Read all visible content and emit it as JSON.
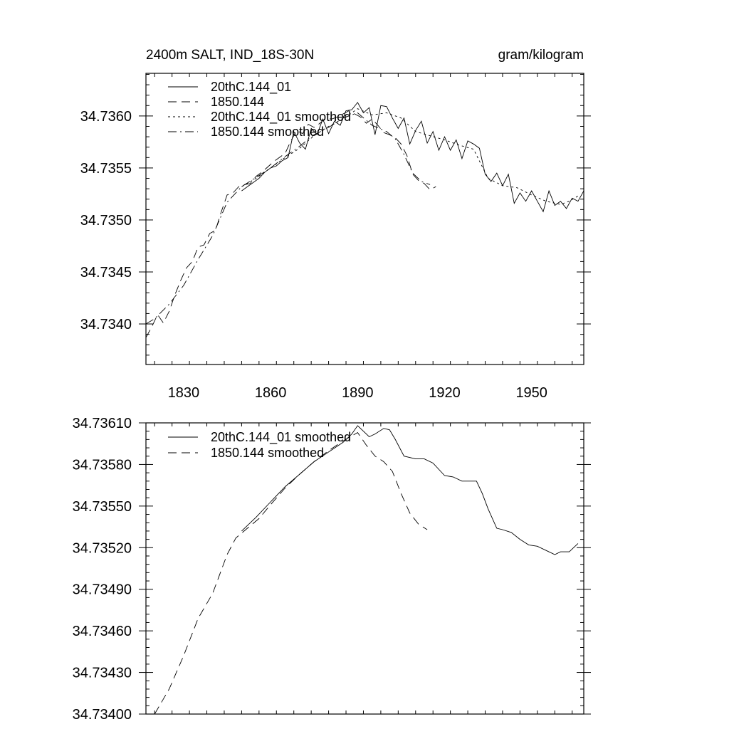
{
  "chart_data": [
    {
      "type": "line",
      "title_left": "2400m SALT, IND_18S-30N",
      "title_right": "gram/kilogram",
      "xlabel": "",
      "ylabel": "",
      "xlim": [
        1817,
        1968
      ],
      "ylim": [
        34.73361,
        34.73641
      ],
      "x_ticks": [
        1830,
        1860,
        1890,
        1920,
        1950
      ],
      "x_tick_labels": [
        "1830",
        "1860",
        "1890",
        "1920",
        "1950"
      ],
      "y_ticks": [
        34.734,
        34.7345,
        34.735,
        34.7355,
        34.736
      ],
      "y_tick_labels": [
        "34.7340",
        "34.7345",
        "34.7350",
        "34.7355",
        "34.7360"
      ],
      "legend_position": "top-left",
      "series": [
        {
          "name": "20thC.144_01",
          "dash": "solid",
          "x": [
            1850,
            1852,
            1854,
            1856,
            1858,
            1860,
            1862,
            1864,
            1866,
            1868,
            1870,
            1872,
            1874,
            1876,
            1878,
            1880,
            1882,
            1884,
            1886,
            1888,
            1890,
            1892,
            1894,
            1896,
            1898,
            1900,
            1902,
            1904,
            1906,
            1908,
            1910,
            1912,
            1914,
            1916,
            1918,
            1920,
            1922,
            1924,
            1926,
            1928,
            1930,
            1932,
            1934,
            1936,
            1938,
            1940,
            1942,
            1944,
            1946,
            1948,
            1950,
            1952,
            1954,
            1956,
            1958,
            1960,
            1962,
            1964,
            1966,
            1968
          ],
          "y": [
            34.73528,
            34.73532,
            34.73536,
            34.7354,
            34.73546,
            34.7355,
            34.73552,
            34.73557,
            34.7356,
            34.73585,
            34.73574,
            34.73568,
            34.73588,
            34.73582,
            34.73597,
            34.73583,
            34.73595,
            34.73591,
            34.73605,
            34.73606,
            34.73613,
            34.73603,
            34.73608,
            34.73582,
            34.7361,
            34.73609,
            34.73598,
            34.73588,
            34.73598,
            34.73573,
            34.73586,
            34.73595,
            34.73574,
            34.73585,
            34.73567,
            34.7358,
            34.73567,
            34.73577,
            34.73559,
            34.73576,
            34.73573,
            34.73569,
            34.73544,
            34.73537,
            34.73545,
            34.73533,
            34.73544,
            34.73516,
            34.73526,
            34.73518,
            34.73528,
            34.73518,
            34.73508,
            34.73528,
            34.73514,
            34.73518,
            34.73511,
            34.73521,
            34.73518,
            34.73528
          ]
        },
        {
          "name": "1850.144",
          "dash": "long-dash",
          "x": [
            1817,
            1819,
            1821,
            1823,
            1825,
            1827,
            1829,
            1831,
            1833,
            1835,
            1837,
            1839,
            1841,
            1843,
            1845,
            1847,
            1849,
            1851,
            1853,
            1855,
            1857,
            1859,
            1861,
            1863,
            1865,
            1867,
            1869,
            1871,
            1873,
            1875,
            1877,
            1879,
            1881,
            1883,
            1885,
            1887,
            1889,
            1891,
            1893,
            1895,
            1897,
            1899,
            1901,
            1903,
            1905,
            1907,
            1909,
            1911,
            1913,
            1915,
            1917
          ],
          "y": [
            34.73387,
            34.73397,
            34.73409,
            34.73401,
            34.73412,
            34.73428,
            34.73442,
            34.73454,
            34.7346,
            34.73474,
            34.73476,
            34.73487,
            34.7349,
            34.73508,
            34.73524,
            34.73526,
            34.73532,
            34.73534,
            34.73535,
            34.73542,
            34.73546,
            34.73551,
            34.73556,
            34.7356,
            34.73564,
            34.73576,
            34.73586,
            34.73583,
            34.73592,
            34.73589,
            34.73593,
            34.73598,
            34.73597,
            34.73599,
            34.73602,
            34.73605,
            34.73602,
            34.73599,
            34.73593,
            34.73597,
            34.73591,
            34.73584,
            34.73582,
            34.73579,
            34.73573,
            34.73562,
            34.73544,
            34.73538,
            34.73535,
            34.73529,
            34.73532
          ]
        },
        {
          "name": "20thC.144_01 smoothed",
          "dash": "dotted",
          "x": [
            1850,
            1855,
            1860,
            1865,
            1870,
            1875,
            1880,
            1885,
            1890,
            1895,
            1900,
            1905,
            1910,
            1915,
            1920,
            1925,
            1930,
            1935,
            1940,
            1945,
            1950,
            1955,
            1960,
            1963,
            1966
          ],
          "y": [
            34.73532,
            34.7354,
            34.7355,
            34.7356,
            34.73569,
            34.73581,
            34.7359,
            34.73597,
            34.73607,
            34.73601,
            34.73603,
            34.73598,
            34.73585,
            34.73581,
            34.73577,
            34.73572,
            34.73568,
            34.7354,
            34.73533,
            34.73531,
            34.73524,
            34.73518,
            34.73515,
            34.73518,
            34.73523
          ]
        },
        {
          "name": "1850.144 smoothed",
          "dash": "dash-dot",
          "x": [
            1817,
            1820,
            1825,
            1830,
            1835,
            1840,
            1845,
            1850,
            1855,
            1860,
            1865,
            1870,
            1875,
            1880,
            1885,
            1890,
            1895,
            1900,
            1903,
            1906,
            1909,
            1912,
            1915
          ],
          "y": [
            34.734,
            34.73405,
            34.73419,
            34.73437,
            34.73462,
            34.73485,
            34.73517,
            34.73532,
            34.73541,
            34.7355,
            34.73561,
            34.73571,
            34.73582,
            34.73589,
            34.73598,
            34.73603,
            34.73591,
            34.73585,
            34.73578,
            34.73563,
            34.73545,
            34.73537,
            34.73534
          ]
        }
      ]
    },
    {
      "type": "line",
      "xlim": [
        1817,
        1968
      ],
      "ylim": [
        34.734,
        34.7361
      ],
      "x_ticks": [
        1830,
        1860,
        1890,
        1920,
        1950
      ],
      "y_ticks": [
        34.734,
        34.7343,
        34.7346,
        34.7349,
        34.7352,
        34.7355,
        34.7358,
        34.7361
      ],
      "y_tick_labels": [
        "34.73400",
        "34.73430",
        "34.73460",
        "34.73490",
        "34.73520",
        "34.73550",
        "34.73580",
        "34.73610"
      ],
      "legend_position": "top-left",
      "series": [
        {
          "name": "20thC.144_01 smoothed",
          "dash": "solid",
          "x": [
            1850,
            1855,
            1860,
            1865,
            1870,
            1875,
            1880,
            1885,
            1888,
            1890,
            1892,
            1894,
            1896,
            1899,
            1901,
            1903,
            1906,
            1910,
            1913,
            1916,
            1920,
            1923,
            1926,
            1929,
            1931,
            1933,
            1935,
            1938,
            1940,
            1943,
            1946,
            1949,
            1952,
            1955,
            1958,
            1960,
            1963,
            1966
          ],
          "y": [
            34.73532,
            34.73542,
            34.73553,
            34.73564,
            34.73573,
            34.73582,
            34.73589,
            34.73596,
            34.73602,
            34.73608,
            34.73604,
            34.736,
            34.73602,
            34.73606,
            34.73605,
            34.73598,
            34.73586,
            34.73584,
            34.73584,
            34.73581,
            34.73572,
            34.73571,
            34.73568,
            34.73568,
            34.73568,
            34.73559,
            34.73548,
            34.73534,
            34.73533,
            34.73531,
            34.73526,
            34.73522,
            34.73521,
            34.73518,
            34.73515,
            34.73517,
            34.73517,
            34.73523
          ]
        },
        {
          "name": "1850.144 smoothed",
          "dash": "long-dash",
          "x": [
            1820,
            1825,
            1830,
            1835,
            1840,
            1845,
            1848,
            1852,
            1856,
            1860,
            1865,
            1870,
            1875,
            1880,
            1885,
            1890,
            1893,
            1896,
            1899,
            1902,
            1905,
            1908,
            1911,
            1914
          ],
          "y": [
            34.734,
            34.73418,
            34.73442,
            34.73469,
            34.73487,
            34.73515,
            34.73527,
            34.73534,
            34.73541,
            34.73551,
            34.73563,
            34.73573,
            34.73582,
            34.7359,
            34.73597,
            34.73603,
            34.73594,
            34.73586,
            34.73582,
            34.73575,
            34.73559,
            34.73545,
            34.73537,
            34.73533
          ]
        }
      ]
    }
  ]
}
